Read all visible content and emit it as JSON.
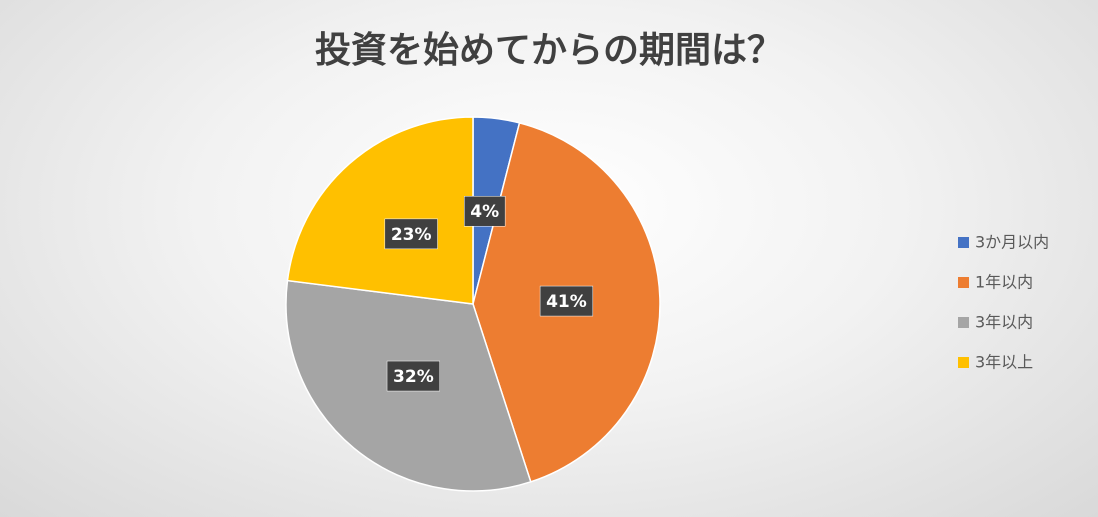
{
  "chart_data": {
    "type": "pie",
    "title": "投資を始めてからの期間は？",
    "categories": [
      "3か月以内",
      "1年以内",
      "3年以内",
      "3年以上"
    ],
    "values": [
      4,
      41,
      32,
      23
    ],
    "value_labels": [
      "4%",
      "41%",
      "32%",
      "23%"
    ],
    "colors": [
      "#4472c4",
      "#ed7d31",
      "#a5a5a5",
      "#ffc000"
    ],
    "legend": "right"
  }
}
